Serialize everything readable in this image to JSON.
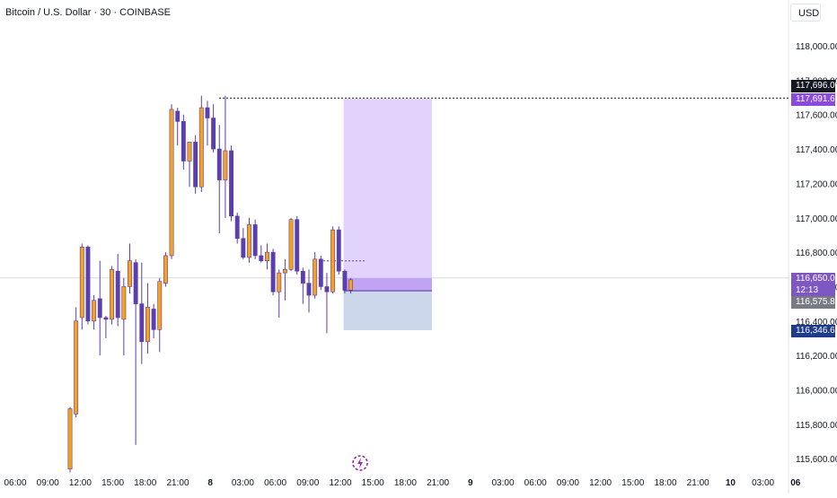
{
  "header": {
    "title": "Bitcoin / U.S. Dollar · 30 · COINBASE",
    "currency": "USD"
  },
  "colors": {
    "up": "#f7a21b",
    "down": "#5b3fad",
    "wick": "#5b3fad",
    "target": "#8a4bdc",
    "stop": "#1e3a8a",
    "profit_zone": "#dccbfa",
    "loss_zone": "#c6d3ea"
  },
  "price_tags": {
    "high_dotted": "117,696.08",
    "target": "117,691.64",
    "last": "116,650.00",
    "countdown": "12:13",
    "entry": "116,575.83",
    "stop": "116,346.62"
  },
  "icons": {
    "replay": "lightning-icon"
  },
  "chart_data": {
    "type": "candlestick",
    "title": "Bitcoin / U.S. Dollar · 30 · COINBASE",
    "y_ticks": [
      "118,000.00",
      "117,800.00",
      "117,600.00",
      "117,400.00",
      "117,200.00",
      "117,000.00",
      "116,800.00",
      "116,600.00",
      "116,400.00",
      "116,200.00",
      "116,000.00",
      "115,800.00",
      "115,600.00"
    ],
    "y_tick_values": [
      118000,
      117800,
      117600,
      117400,
      117200,
      117000,
      116800,
      116600,
      116400,
      116200,
      116000,
      115800,
      115600
    ],
    "x_ticks": [
      "06:00",
      "09:00",
      "12:00",
      "15:00",
      "18:00",
      "21:00",
      "8",
      "03:00",
      "06:00",
      "09:00",
      "12:00",
      "15:00",
      "18:00",
      "21:00",
      "9",
      "03:00",
      "06:00",
      "09:00",
      "12:00",
      "15:00",
      "18:00",
      "21:00",
      "10",
      "03:00",
      "06"
    ],
    "ylim": [
      115550,
      118200
    ],
    "candles": [
      {
        "o": 115540,
        "h": 115900,
        "l": 115520,
        "c": 115890
      },
      {
        "o": 115860,
        "h": 116480,
        "l": 115840,
        "c": 116400
      },
      {
        "o": 116420,
        "h": 116850,
        "l": 116350,
        "c": 116830
      },
      {
        "o": 116830,
        "h": 116840,
        "l": 116380,
        "c": 116400
      },
      {
        "o": 116400,
        "h": 116550,
        "l": 116350,
        "c": 116520
      },
      {
        "o": 116530,
        "h": 116750,
        "l": 116200,
        "c": 116420
      },
      {
        "o": 116420,
        "h": 116430,
        "l": 116300,
        "c": 116410
      },
      {
        "o": 116410,
        "h": 116720,
        "l": 116380,
        "c": 116700
      },
      {
        "o": 116690,
        "h": 116790,
        "l": 116370,
        "c": 116420
      },
      {
        "o": 116410,
        "h": 116650,
        "l": 116200,
        "c": 116600
      },
      {
        "o": 116600,
        "h": 116850,
        "l": 116560,
        "c": 116750
      },
      {
        "o": 116740,
        "h": 116760,
        "l": 115680,
        "c": 116500
      },
      {
        "o": 116500,
        "h": 116740,
        "l": 116150,
        "c": 116280
      },
      {
        "o": 116280,
        "h": 116620,
        "l": 116210,
        "c": 116480
      },
      {
        "o": 116470,
        "h": 116500,
        "l": 116300,
        "c": 116350
      },
      {
        "o": 116350,
        "h": 116650,
        "l": 116220,
        "c": 116630
      },
      {
        "o": 116620,
        "h": 116800,
        "l": 116600,
        "c": 116780
      },
      {
        "o": 116780,
        "h": 117660,
        "l": 116760,
        "c": 117630
      },
      {
        "o": 117620,
        "h": 117640,
        "l": 117420,
        "c": 117560
      },
      {
        "o": 117560,
        "h": 117600,
        "l": 117280,
        "c": 117330
      },
      {
        "o": 117330,
        "h": 117440,
        "l": 117180,
        "c": 117440
      },
      {
        "o": 117440,
        "h": 117480,
        "l": 117140,
        "c": 117180
      },
      {
        "o": 117180,
        "h": 117710,
        "l": 117150,
        "c": 117640
      },
      {
        "o": 117640,
        "h": 117680,
        "l": 117420,
        "c": 117580
      },
      {
        "o": 117580,
        "h": 117660,
        "l": 117380,
        "c": 117400
      },
      {
        "o": 117400,
        "h": 117540,
        "l": 116910,
        "c": 117220
      },
      {
        "o": 117220,
        "h": 117710,
        "l": 117000,
        "c": 117390
      },
      {
        "o": 117390,
        "h": 117420,
        "l": 116980,
        "c": 117010
      },
      {
        "o": 117010,
        "h": 117030,
        "l": 116850,
        "c": 116880
      },
      {
        "o": 116880,
        "h": 116940,
        "l": 116760,
        "c": 116770
      },
      {
        "o": 116770,
        "h": 117000,
        "l": 116740,
        "c": 116960
      },
      {
        "o": 116960,
        "h": 116990,
        "l": 116760,
        "c": 116780
      },
      {
        "o": 116780,
        "h": 116840,
        "l": 116740,
        "c": 116750
      },
      {
        "o": 116750,
        "h": 116850,
        "l": 116700,
        "c": 116800
      },
      {
        "o": 116800,
        "h": 116820,
        "l": 116550,
        "c": 116570
      },
      {
        "o": 116570,
        "h": 116700,
        "l": 116420,
        "c": 116680
      },
      {
        "o": 116680,
        "h": 116760,
        "l": 116520,
        "c": 116700
      },
      {
        "o": 116700,
        "h": 117000,
        "l": 116690,
        "c": 116990
      },
      {
        "o": 116990,
        "h": 117010,
        "l": 116670,
        "c": 116690
      },
      {
        "o": 116690,
        "h": 116710,
        "l": 116500,
        "c": 116620
      },
      {
        "o": 116620,
        "h": 116700,
        "l": 116450,
        "c": 116550
      },
      {
        "o": 116550,
        "h": 116800,
        "l": 116530,
        "c": 116760
      },
      {
        "o": 116760,
        "h": 116780,
        "l": 116580,
        "c": 116600
      },
      {
        "o": 116600,
        "h": 116680,
        "l": 116330,
        "c": 116570
      },
      {
        "o": 116570,
        "h": 116950,
        "l": 116560,
        "c": 116930
      },
      {
        "o": 116930,
        "h": 116950,
        "l": 116670,
        "c": 116690
      },
      {
        "o": 116690,
        "h": 116700,
        "l": 116560,
        "c": 116580
      },
      {
        "o": 116580,
        "h": 116650,
        "l": 116560,
        "c": 116640
      }
    ],
    "position": {
      "type": "long",
      "target": 117691.64,
      "entry": 116575.83,
      "stop": 116346.62
    },
    "horizontal_line": 117696.08,
    "last_price": 116650.0,
    "grid": false
  }
}
